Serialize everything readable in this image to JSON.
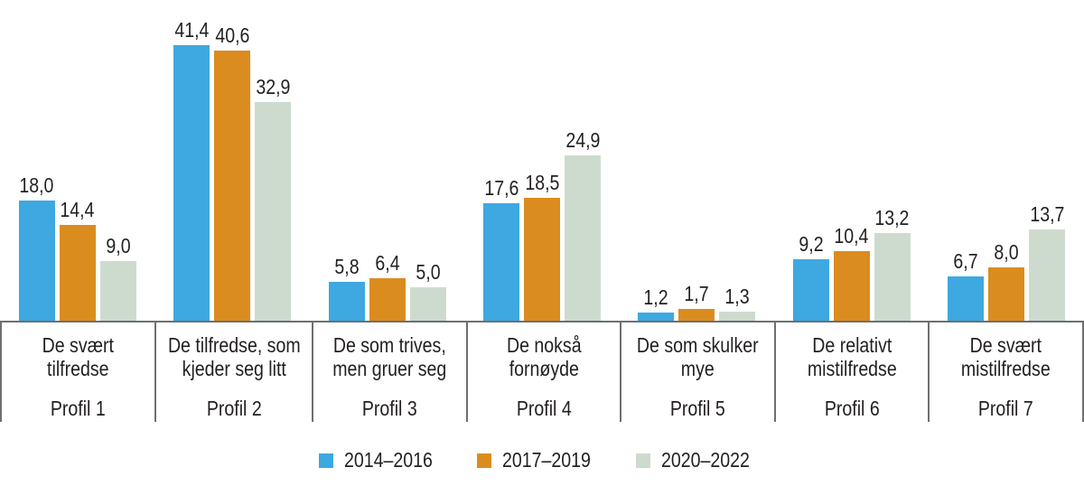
{
  "figure": {
    "background": "#ffffff",
    "text_color": "#231f20",
    "line_color": "#6e6f71"
  },
  "chart_data": {
    "type": "bar",
    "title": "",
    "orientation": "vertical",
    "grid": false,
    "value_axis_visible": false,
    "ylim": [
      0,
      43
    ],
    "legend_position": "bottom-center",
    "decimal_separator": ",",
    "categories": [
      {
        "label": "De svært tilfredse",
        "label_lines": [
          "De svært",
          "tilfredse"
        ],
        "profile": "Profil 1"
      },
      {
        "label": "De tilfredse, som kjeder seg litt",
        "label_lines": [
          "De tilfredse, som",
          "kjeder seg litt"
        ],
        "profile": "Profil 2"
      },
      {
        "label": "De som trives, men gruer seg",
        "label_lines": [
          "De som trives,",
          "men gruer seg"
        ],
        "profile": "Profil 3"
      },
      {
        "label": "De nokså fornøyde",
        "label_lines": [
          "De nokså",
          "fornøyde"
        ],
        "profile": "Profil 4"
      },
      {
        "label": "De som skulker mye",
        "label_lines": [
          "De som skulker",
          "mye"
        ],
        "profile": "Profil 5"
      },
      {
        "label": "De relativt mistilfredse",
        "label_lines": [
          "De relativt",
          "mistilfredse"
        ],
        "profile": "Profil 6"
      },
      {
        "label": "De svært mistilfredse",
        "label_lines": [
          "De svært",
          "mistilfredse"
        ],
        "profile": "Profil 7"
      }
    ],
    "series": [
      {
        "name": "2014–2016",
        "color": "#3ea8e0",
        "values": [
          18.0,
          41.4,
          5.8,
          17.6,
          1.2,
          9.2,
          6.7
        ],
        "value_labels": [
          "18,0",
          "41,4",
          "5,8",
          "17,6",
          "1,2",
          "9,2",
          "6,7"
        ]
      },
      {
        "name": "2017–2019",
        "color": "#db8c1e",
        "values": [
          14.4,
          40.6,
          6.4,
          18.5,
          1.7,
          10.4,
          8.0
        ],
        "value_labels": [
          "14,4",
          "40,6",
          "6,4",
          "18,5",
          "1,7",
          "10,4",
          "8,0"
        ]
      },
      {
        "name": "2020–2022",
        "color": "#cddbcf",
        "values": [
          9.0,
          32.9,
          5.0,
          24.9,
          1.3,
          13.2,
          13.7
        ],
        "value_labels": [
          "9,0",
          "32,9",
          "5,0",
          "24,9",
          "1,3",
          "13,2",
          "13,7"
        ]
      }
    ]
  }
}
